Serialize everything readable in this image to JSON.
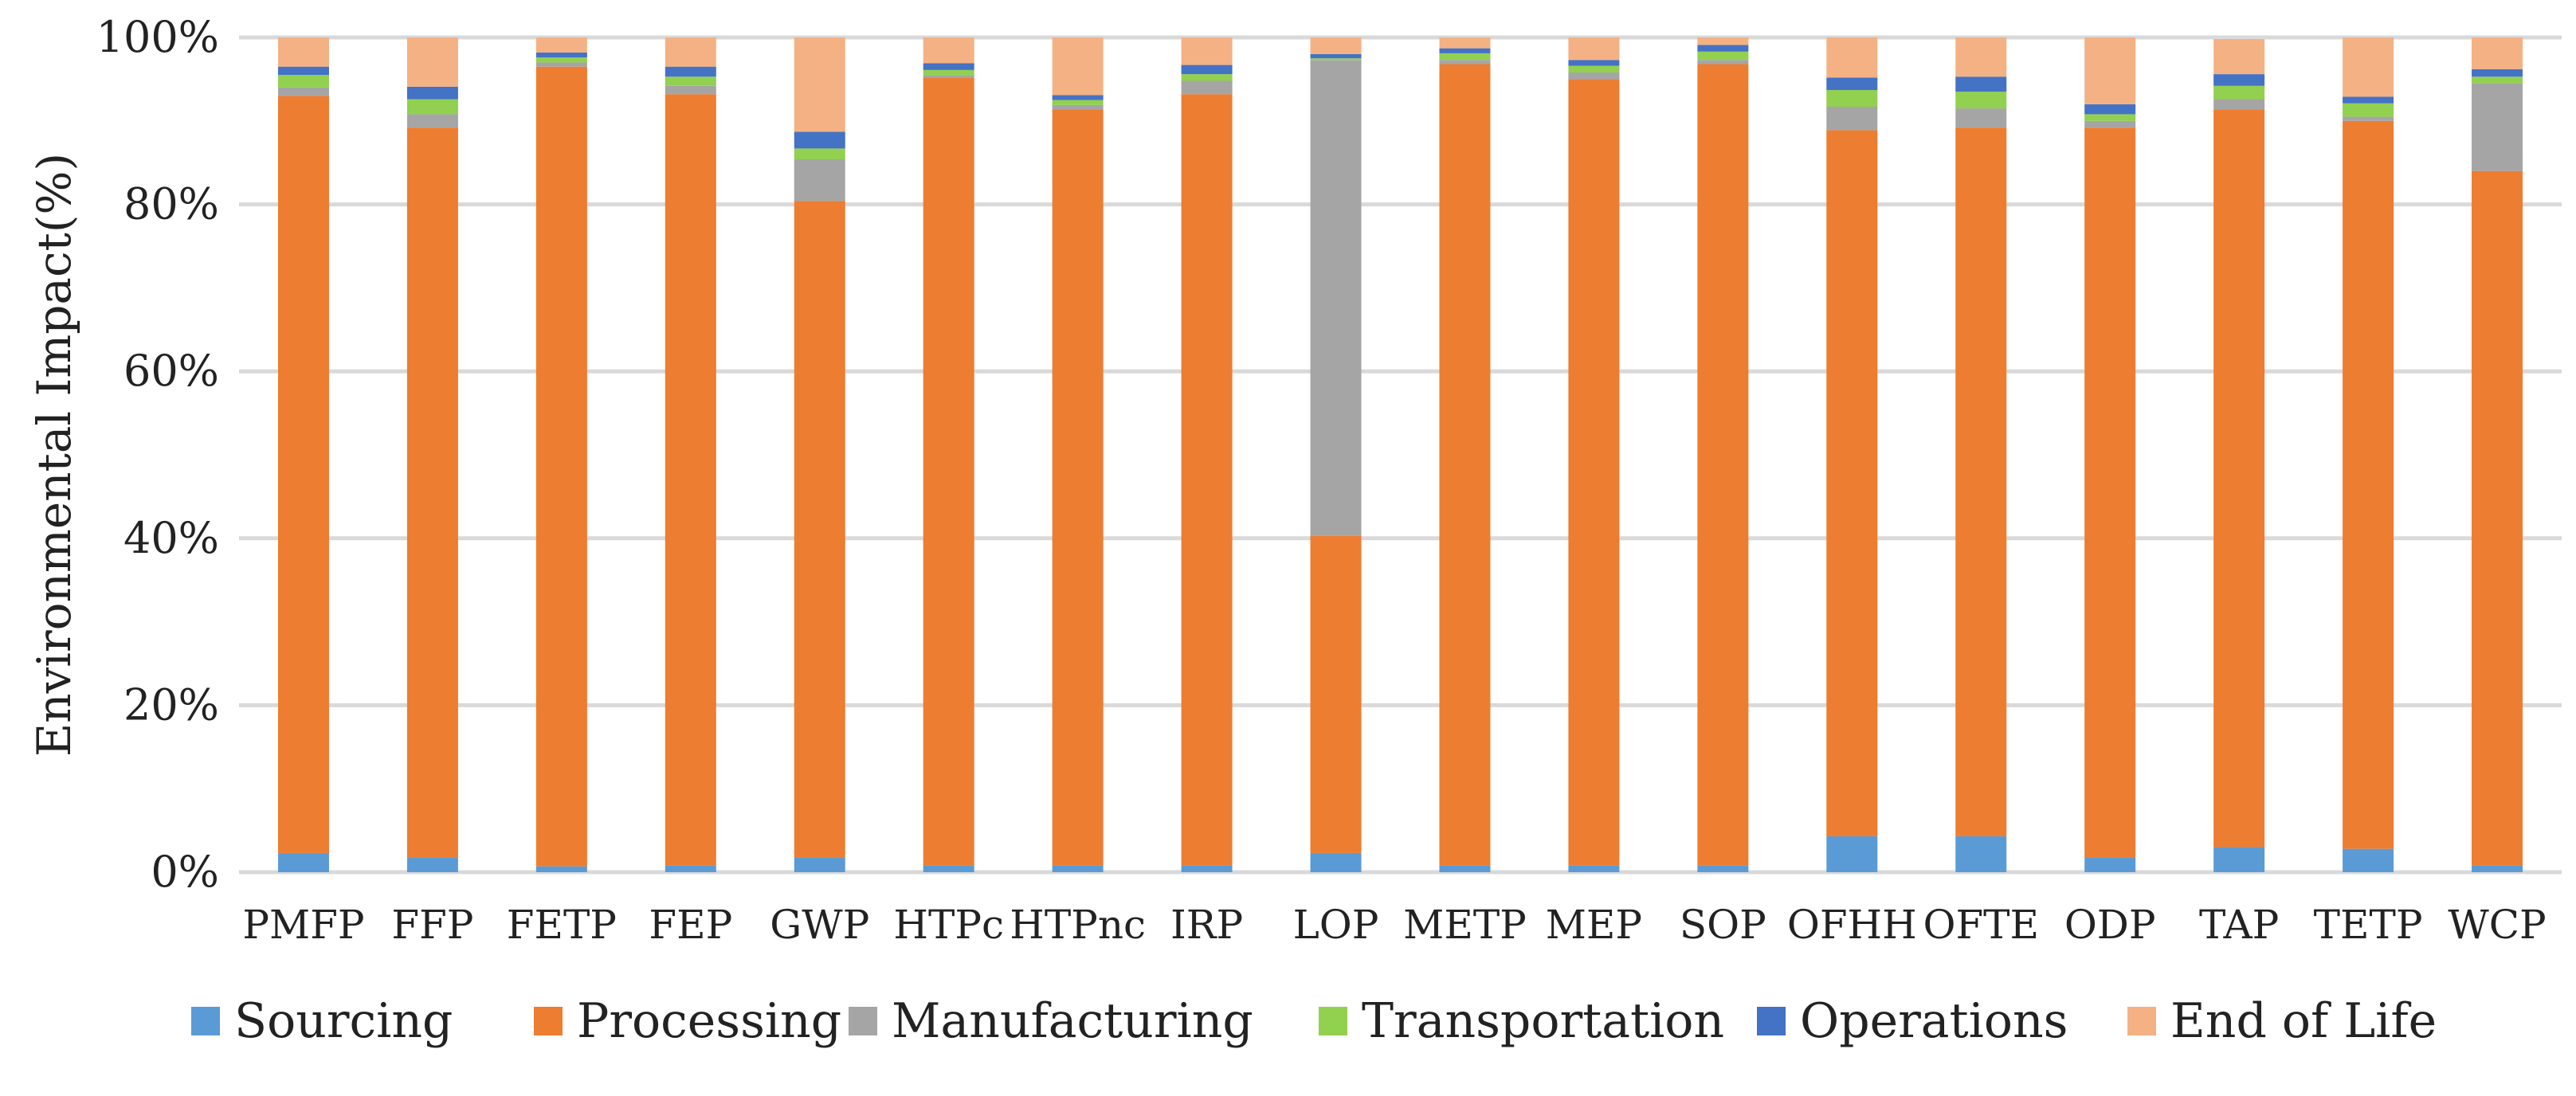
{
  "chart_data": {
    "type": "bar",
    "stacked": true,
    "percent_stacked": true,
    "title": "",
    "xlabel": "",
    "ylabel": "Environmental Impact(%)",
    "ylim": [
      0,
      100
    ],
    "yticks": [
      0,
      20,
      40,
      60,
      80,
      100
    ],
    "ytick_labels": [
      "0%",
      "20%",
      "40%",
      "60%",
      "80%",
      "100%"
    ],
    "grid": true,
    "legend_position": "bottom",
    "categories": [
      "PMFP",
      "FFP",
      "FETP",
      "FEP",
      "GWP",
      "HTPc",
      "HTPnc",
      "IRP",
      "LOP",
      "METP",
      "MEP",
      "SOP",
      "OFHH",
      "OFTE",
      "ODP",
      "TAP",
      "TETP",
      "WCP"
    ],
    "series": [
      {
        "name": "Sourcing",
        "color": "#5B9BD5",
        "values": [
          2.3,
          1.8,
          0.7,
          0.8,
          1.8,
          0.8,
          0.8,
          0.8,
          2.3,
          0.8,
          0.8,
          0.8,
          4.3,
          4.3,
          1.8,
          3.0,
          2.8,
          0.8
        ]
      },
      {
        "name": "Processing",
        "color": "#ED7D31",
        "values": [
          90.7,
          87.4,
          95.8,
          92.4,
          78.6,
          94.4,
          90.6,
          92.4,
          38.0,
          96.0,
          94.2,
          96.0,
          84.6,
          84.9,
          87.4,
          88.4,
          87.2,
          83.2
        ]
      },
      {
        "name": "Manufacturing",
        "color": "#A5A5A5",
        "values": [
          1.0,
          1.6,
          0.5,
          1.0,
          5.0,
          0.3,
          0.5,
          1.6,
          57.0,
          0.5,
          0.8,
          0.5,
          2.8,
          2.3,
          0.8,
          1.2,
          0.5,
          10.5
        ]
      },
      {
        "name": "Transportation",
        "color": "#92D050",
        "values": [
          1.5,
          1.8,
          0.6,
          1.1,
          1.3,
          0.6,
          0.6,
          0.8,
          0.2,
          0.8,
          0.8,
          1.0,
          2.0,
          2.0,
          0.8,
          1.6,
          1.6,
          0.8
        ]
      },
      {
        "name": "Operations",
        "color": "#4472C4",
        "values": [
          1.0,
          1.5,
          0.6,
          1.2,
          2.0,
          0.8,
          0.6,
          1.1,
          0.5,
          0.6,
          0.7,
          0.8,
          1.5,
          1.8,
          1.2,
          1.4,
          0.8,
          0.9
        ]
      },
      {
        "name": "End of Life",
        "color": "#F4B183",
        "values": [
          3.5,
          5.9,
          1.8,
          3.5,
          11.3,
          3.1,
          6.9,
          3.3,
          2.0,
          1.3,
          2.7,
          0.9,
          4.8,
          4.7,
          8.0,
          4.2,
          7.1,
          3.8
        ]
      }
    ]
  }
}
